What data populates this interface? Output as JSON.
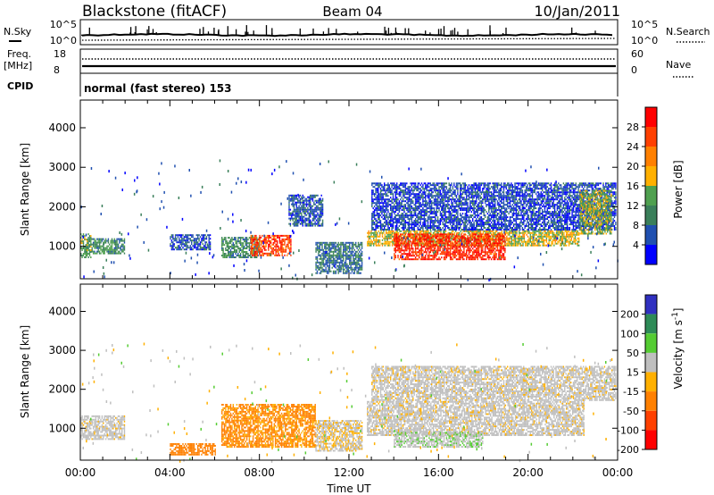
{
  "header": {
    "station": "Blackstone (fitACF)",
    "beam": "Beam 04",
    "date": "10/Jan/2011"
  },
  "panels": {
    "nsky": {
      "label": "N.Sky",
      "left_ticks": [
        "10^5",
        "10^0"
      ],
      "right_ticks": [
        "10^5",
        "10^0"
      ],
      "right_label": "N.Search"
    },
    "freq": {
      "label_line1": "Freq.",
      "label_line2": "[MHz]",
      "left_ticks": [
        "18",
        "8"
      ],
      "right_ticks": [
        "60",
        "0"
      ],
      "right_label": "Nave"
    },
    "cpid": {
      "label": "CPID",
      "text": "normal (fast stereo) 153"
    }
  },
  "colors": {
    "power_scale": [
      "#0000ff",
      "#2050b0",
      "#3a7f5a",
      "#4fa04f",
      "#ffb000",
      "#ff8000",
      "#ff4000",
      "#ff0000"
    ],
    "velocity_scale": [
      "#3030c0",
      "#2e8b57",
      "#55cc33",
      "#bfbfbf",
      "#ffb000",
      "#ff8000",
      "#ff4000",
      "#ff0000"
    ],
    "white": "#ffffff"
  },
  "chart_data": [
    {
      "type": "heatmap",
      "ylabel": "Slant Range [km]",
      "xlabel": "Time UT",
      "x_ticks": [
        "00:00",
        "04:00",
        "08:00",
        "12:00",
        "16:00",
        "20:00",
        "00:00"
      ],
      "xlim_hours": [
        0,
        24
      ],
      "y_ticks": [
        1000,
        2000,
        3000,
        4000
      ],
      "ylim": [
        180,
        4700
      ],
      "colorbar": {
        "label": "Power [dB]",
        "ticks": [
          "4",
          "8",
          "12",
          "16",
          "20",
          "24",
          "28"
        ],
        "range": [
          0,
          30
        ]
      },
      "echo_regions": [
        {
          "start_h": 0.0,
          "end_h": 0.5,
          "low_km": 700,
          "high_km": 1300,
          "level": 12
        },
        {
          "start_h": 0.5,
          "end_h": 2.0,
          "low_km": 800,
          "high_km": 1200,
          "level": 10
        },
        {
          "start_h": 4.0,
          "end_h": 5.8,
          "low_km": 900,
          "high_km": 1300,
          "level": 6
        },
        {
          "start_h": 6.3,
          "end_h": 8.0,
          "low_km": 700,
          "high_km": 1200,
          "level": 10
        },
        {
          "start_h": 7.6,
          "end_h": 9.4,
          "low_km": 750,
          "high_km": 1250,
          "level": 24
        },
        {
          "start_h": 9.3,
          "end_h": 10.8,
          "low_km": 1500,
          "high_km": 2300,
          "level": 6
        },
        {
          "start_h": 10.5,
          "end_h": 12.6,
          "low_km": 300,
          "high_km": 1100,
          "level": 8
        },
        {
          "start_h": 12.8,
          "end_h": 22.3,
          "low_km": 1000,
          "high_km": 1400,
          "level": 16
        },
        {
          "start_h": 14.0,
          "end_h": 19.0,
          "low_km": 650,
          "high_km": 1300,
          "level": 26
        },
        {
          "start_h": 13.0,
          "end_h": 23.9,
          "low_km": 1400,
          "high_km": 2600,
          "level": 5
        },
        {
          "start_h": 22.3,
          "end_h": 23.7,
          "low_km": 1300,
          "high_km": 2400,
          "level": 14
        }
      ]
    },
    {
      "type": "heatmap",
      "ylabel": "Slant Range [km]",
      "xlabel": "Time UT",
      "x_ticks": [
        "00:00",
        "04:00",
        "08:00",
        "12:00",
        "16:00",
        "20:00",
        "00:00"
      ],
      "xlim_hours": [
        0,
        24
      ],
      "y_ticks": [
        1000,
        2000,
        3000,
        4000
      ],
      "ylim": [
        180,
        4700
      ],
      "colorbar": {
        "label": "Velocity [m s^-1]",
        "ticks": [
          "200",
          "100",
          "50",
          "15",
          "-15",
          "-50",
          "-100",
          "-200"
        ],
        "range": [
          -250,
          250
        ]
      },
      "echo_regions": [
        {
          "start_h": 0.0,
          "end_h": 2.0,
          "low_km": 700,
          "high_km": 1300,
          "velocity": 0
        },
        {
          "start_h": 6.3,
          "end_h": 10.5,
          "low_km": 500,
          "high_km": 1600,
          "velocity": -60
        },
        {
          "start_h": 4.0,
          "end_h": 6.0,
          "low_km": 300,
          "high_km": 600,
          "velocity": -80
        },
        {
          "start_h": 10.5,
          "end_h": 12.6,
          "low_km": 400,
          "high_km": 1200,
          "velocity": -10
        },
        {
          "start_h": 12.8,
          "end_h": 22.5,
          "low_km": 800,
          "high_km": 1700,
          "velocity": 0
        },
        {
          "start_h": 14.0,
          "end_h": 18.0,
          "low_km": 500,
          "high_km": 900,
          "velocity": 20
        },
        {
          "start_h": 13.0,
          "end_h": 23.9,
          "low_km": 1700,
          "high_km": 2600,
          "velocity": 0
        }
      ]
    }
  ]
}
